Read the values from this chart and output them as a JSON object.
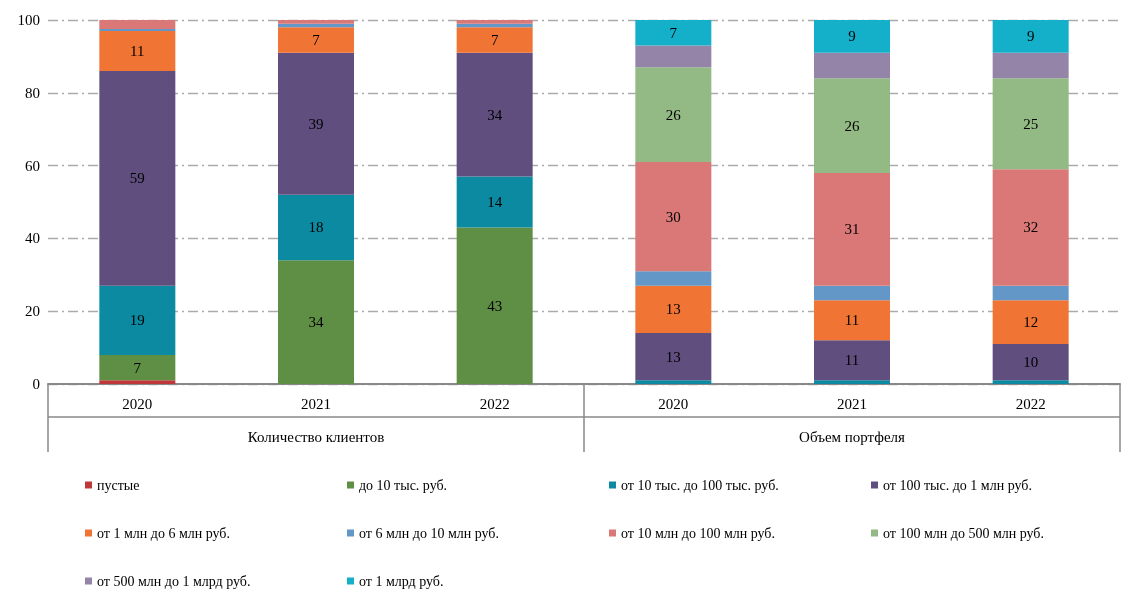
{
  "chart_data": {
    "type": "bar",
    "stacked": true,
    "categories": [
      "2020",
      "2021",
      "2022",
      "2020",
      "2021",
      "2022"
    ],
    "annotations": [
      "Количество клиентов",
      "Объем портфеля"
    ],
    "ylim": [
      0,
      100
    ],
    "yticks": [
      0,
      20,
      40,
      60,
      80,
      100
    ],
    "grid": "y",
    "legend": "bottom",
    "series": [
      {
        "name": "пустые",
        "color": "#c0373a",
        "values": [
          1,
          0,
          0,
          0,
          0,
          0
        ],
        "value_labels": [
          null,
          null,
          null,
          null,
          null,
          null
        ]
      },
      {
        "name": "до 10 тыс. руб.",
        "color": "#5f8f45",
        "values": [
          7,
          34,
          43,
          0,
          0,
          0
        ],
        "value_labels": [
          "7",
          "34",
          "43",
          null,
          null,
          null
        ]
      },
      {
        "name": "от 10 тыс. до 100 тыс. руб.",
        "color": "#0b8aa2",
        "values": [
          19,
          18,
          14,
          1,
          1,
          1
        ],
        "value_labels": [
          "19",
          "18",
          "14",
          null,
          null,
          null
        ]
      },
      {
        "name": "от 100 тыс. до 1 млн руб.",
        "color": "#604e7e",
        "values": [
          59,
          39,
          34,
          13,
          11,
          10
        ],
        "value_labels": [
          "59",
          "39",
          "34",
          "13",
          "11",
          "10"
        ]
      },
      {
        "name": "от 1 млн до 6 млн руб.",
        "color": "#f07535",
        "values": [
          11,
          7,
          7,
          13,
          11,
          12
        ],
        "value_labels": [
          "11",
          "7",
          "7",
          "13",
          "11",
          "12"
        ]
      },
      {
        "name": "от 6 млн до 10 млн руб.",
        "color": "#6297c7",
        "values": [
          0.5,
          1,
          1,
          4,
          4,
          4
        ],
        "value_labels": [
          null,
          null,
          null,
          null,
          null,
          null
        ]
      },
      {
        "name": "от 10 млн до 100 млн руб.",
        "color": "#d97876",
        "values": [
          2.5,
          1,
          1,
          30,
          31,
          32
        ],
        "value_labels": [
          null,
          null,
          null,
          "30",
          "31",
          "32"
        ]
      },
      {
        "name": "от 100 млн до 500 млн руб.",
        "color": "#93ba84",
        "values": [
          null,
          0,
          0,
          26,
          26,
          25
        ],
        "value_labels": [
          null,
          null,
          null,
          "26",
          "26",
          "25"
        ]
      },
      {
        "name": "от 500 млн до 1 млрд руб.",
        "color": "#9484a7",
        "values": [
          0,
          0,
          0,
          6,
          7,
          7
        ],
        "value_labels": [
          null,
          null,
          null,
          null,
          null,
          null
        ]
      },
      {
        "name": "от 1 млрд руб.",
        "color": "#14b0c9",
        "values": [
          0,
          0,
          0,
          7,
          9,
          9
        ],
        "value_labels": [
          null,
          null,
          null,
          "7",
          "9",
          "9"
        ]
      }
    ]
  }
}
